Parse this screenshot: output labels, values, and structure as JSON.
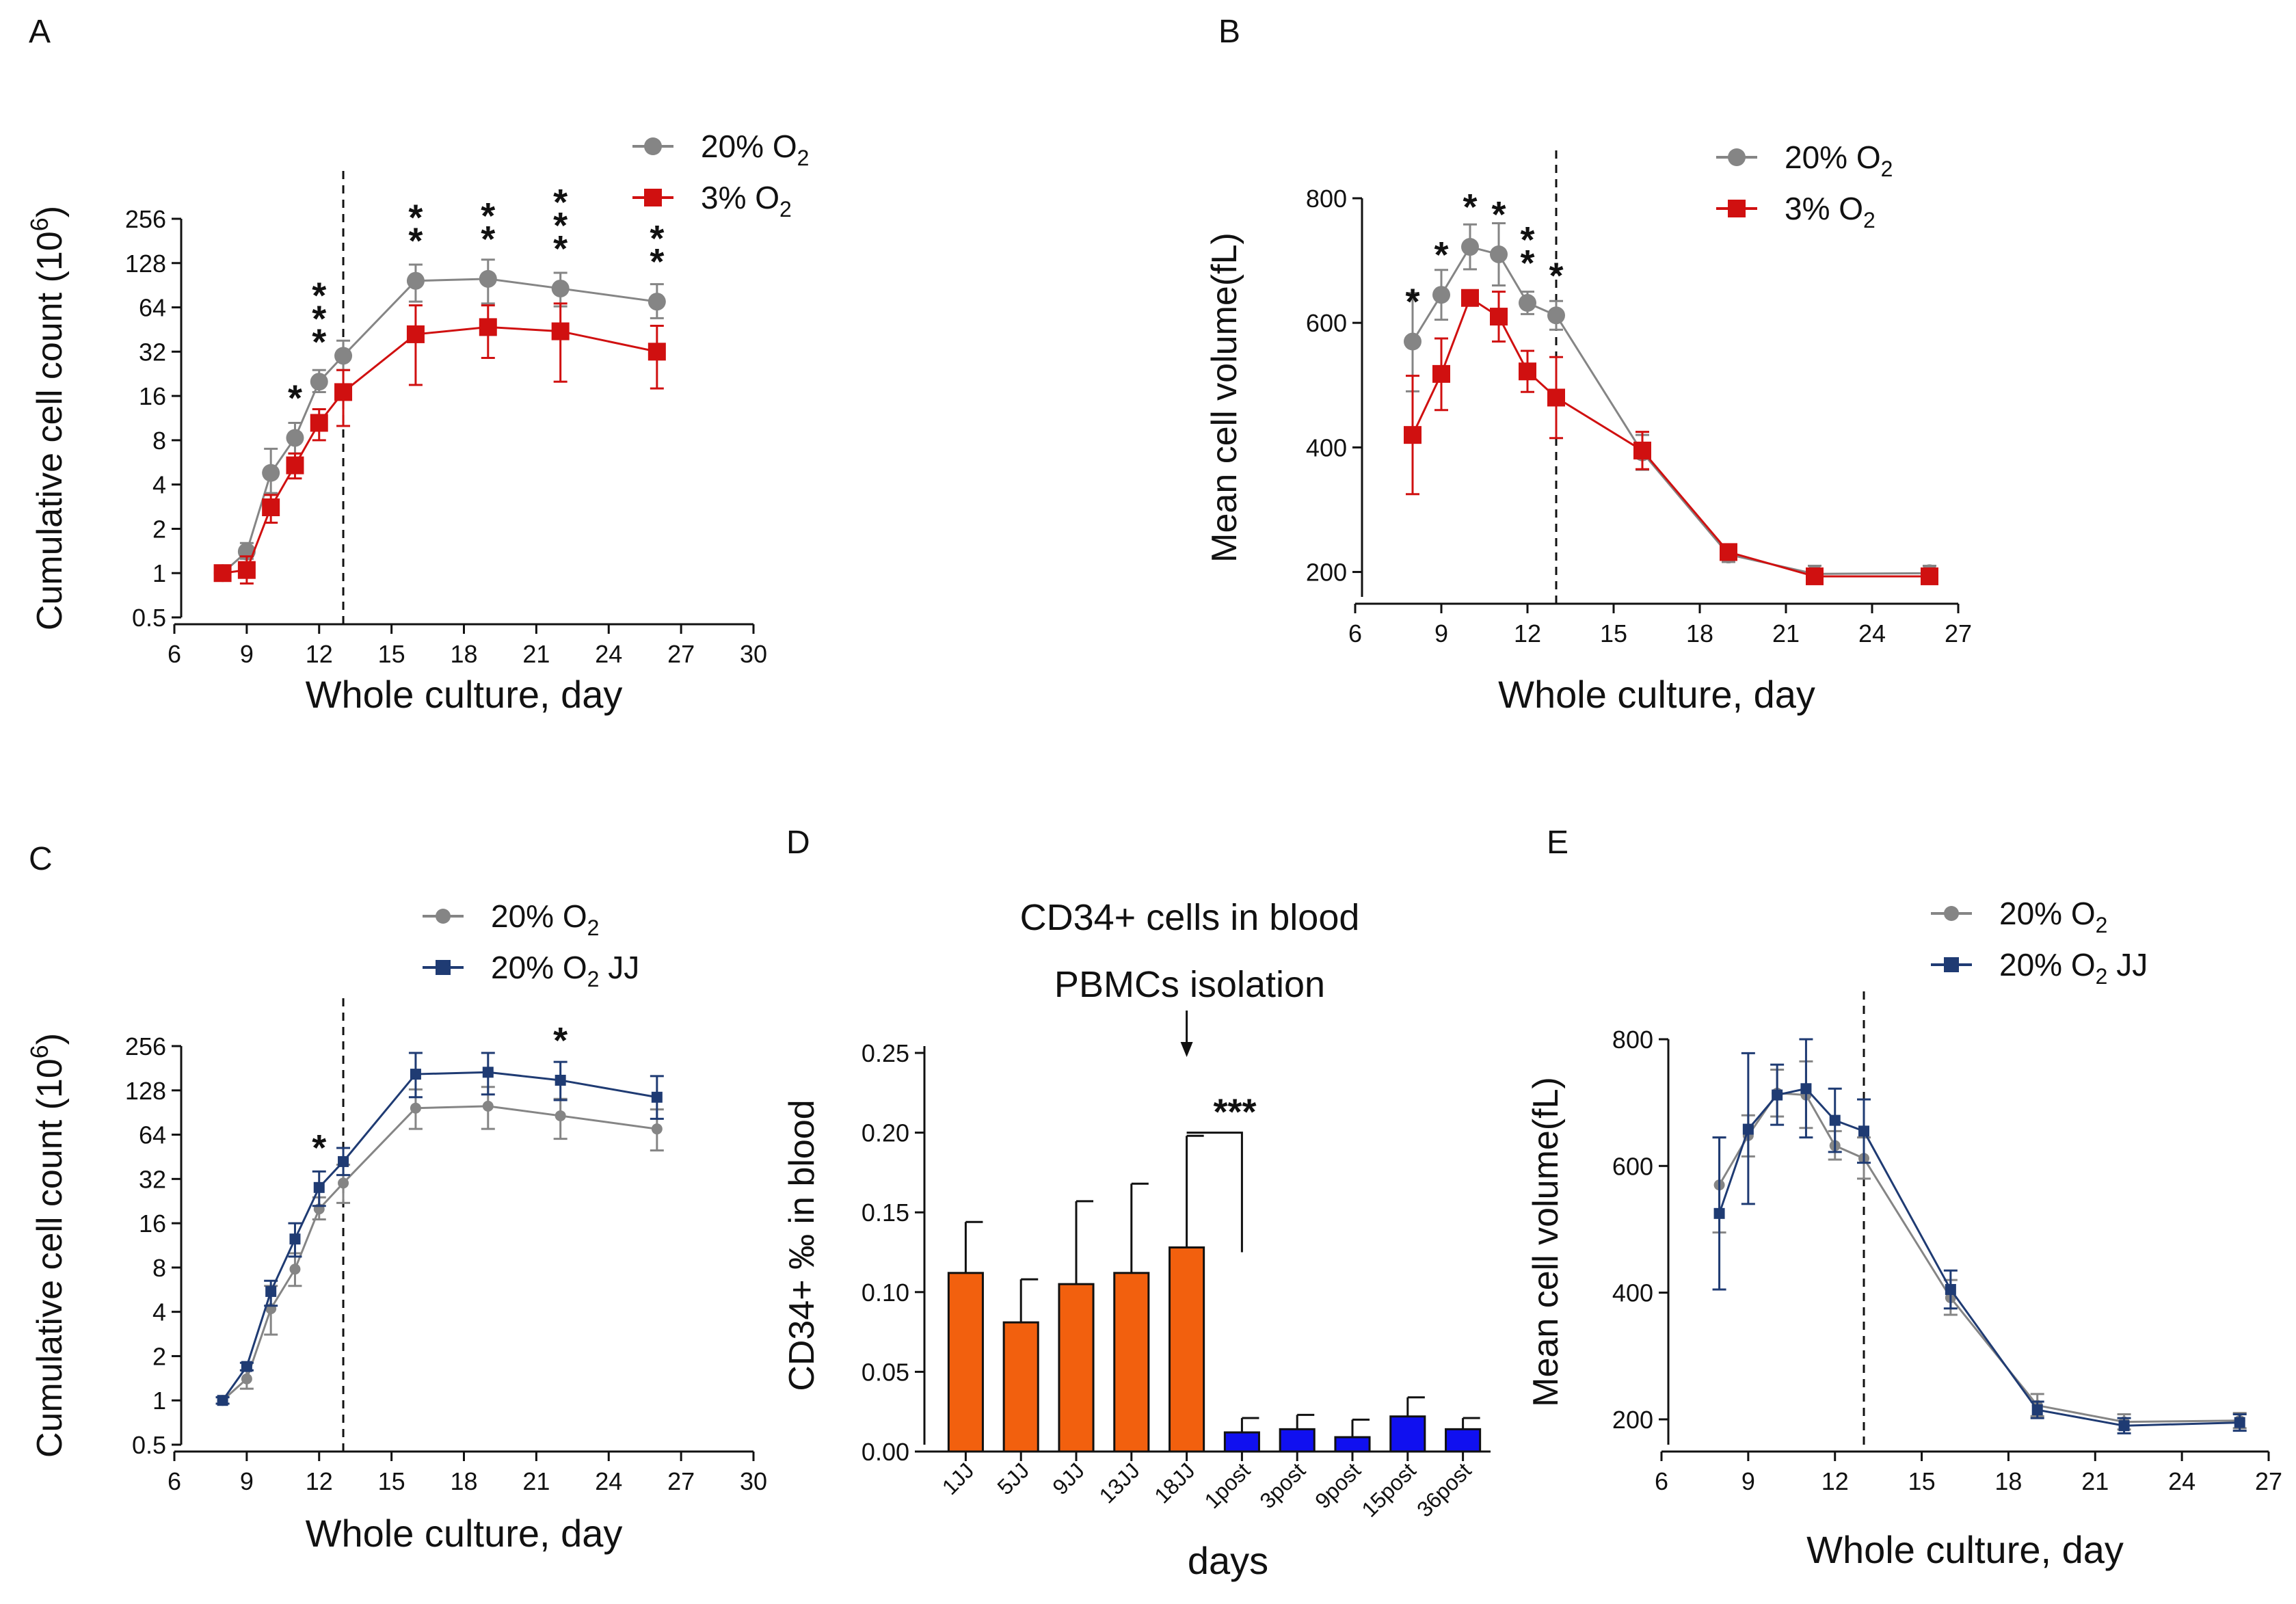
{
  "figure": {
    "panels": [
      "A",
      "B",
      "C",
      "D",
      "E"
    ]
  },
  "colors": {
    "gray": "#858585",
    "red": "#d01010",
    "navy": "#1f3b73",
    "orange": "#f2600e",
    "blue": "#1010f0",
    "black": "#111111"
  },
  "chart_data": [
    {
      "panel": "A",
      "type": "line",
      "yscale": "log2",
      "xlabel": "Whole culture, day",
      "ylabel": "Cumulative cell count (10",
      "ylabel_sup": "6",
      "ylabel_end": ")",
      "xlim": [
        6,
        30
      ],
      "ylim": [
        0.5,
        256
      ],
      "xticks": [
        6,
        9,
        12,
        15,
        18,
        21,
        24,
        27,
        30
      ],
      "yticks": [
        0.5,
        1,
        2,
        4,
        8,
        16,
        32,
        64,
        128,
        256
      ],
      "ytick_labels": [
        "0.5",
        "1",
        "2",
        "4",
        "8",
        "16",
        "32",
        "64",
        "128",
        "256"
      ],
      "vline_x": 13,
      "legend": [
        {
          "name": "20% O",
          "sub": "2",
          "suffix": "",
          "color": "gray",
          "marker": "circle"
        },
        {
          "name": "3% O",
          "sub": "2",
          "suffix": "",
          "color": "red",
          "marker": "square"
        }
      ],
      "series": [
        {
          "name": "20% O2",
          "color": "gray",
          "marker": "circle",
          "x": [
            8,
            9,
            10,
            11,
            12,
            13,
            16,
            19,
            22,
            26
          ],
          "y": [
            1,
            1.4,
            4.8,
            8.3,
            20,
            30,
            97,
            100,
            86,
            70
          ],
          "err_hi": [
            1.05,
            1.6,
            7,
            10.5,
            24,
            38,
            125,
            135,
            110,
            92
          ],
          "err_lo": [
            0.95,
            1.25,
            3.5,
            6.5,
            17,
            24,
            70,
            68,
            65,
            54
          ]
        },
        {
          "name": "3% O2",
          "color": "red",
          "marker": "square",
          "x": [
            8,
            9,
            10,
            11,
            12,
            13,
            16,
            19,
            22,
            26
          ],
          "y": [
            1,
            1.05,
            2.8,
            5.4,
            10.5,
            17,
            42,
            47,
            44,
            32
          ],
          "err_hi": [
            1.05,
            1.3,
            3.4,
            6.5,
            13,
            24,
            66,
            66,
            68,
            48
          ],
          "err_lo": [
            0.95,
            0.85,
            2.2,
            4.4,
            8,
            10,
            19,
            29,
            20,
            18
          ]
        }
      ],
      "annotations": [
        {
          "x": 11,
          "y": 8.3,
          "text": "*"
        },
        {
          "x": 12,
          "y": 20,
          "text": "***"
        },
        {
          "x": 16,
          "y": 97,
          "text": "**"
        },
        {
          "x": 19,
          "y": 100,
          "text": "**"
        },
        {
          "x": 22,
          "y": 86,
          "text": "***"
        },
        {
          "x": 26,
          "y": 70,
          "text": "**"
        }
      ]
    },
    {
      "panel": "B",
      "type": "line",
      "yscale": "linear",
      "xlabel": "Whole culture, day",
      "ylabel": "Mean cell volume(fL)",
      "xlim": [
        6,
        27
      ],
      "ylim": [
        160,
        800
      ],
      "xticks": [
        6,
        9,
        12,
        15,
        18,
        21,
        24,
        27
      ],
      "yticks": [
        200,
        400,
        600,
        800
      ],
      "ytick_labels": [
        "200",
        "400",
        "600",
        "800"
      ],
      "vline_x": 13,
      "legend": [
        {
          "name": "20% O",
          "sub": "2",
          "suffix": "",
          "color": "gray",
          "marker": "circle"
        },
        {
          "name": "3% O",
          "sub": "2",
          "suffix": "",
          "color": "red",
          "marker": "square"
        }
      ],
      "series": [
        {
          "name": "20% O2",
          "color": "gray",
          "marker": "circle",
          "x": [
            8,
            9,
            10,
            11,
            12,
            13,
            16,
            19,
            22,
            26
          ],
          "y": [
            570,
            645,
            722,
            710,
            632,
            612,
            392,
            228,
            197,
            198
          ],
          "err_hi": [
            648,
            685,
            758,
            760,
            650,
            635,
            420,
            240,
            210,
            210
          ],
          "err_lo": [
            490,
            605,
            686,
            660,
            614,
            589,
            364,
            216,
            184,
            186
          ]
        },
        {
          "name": "3% O2",
          "color": "red",
          "marker": "square",
          "x": [
            8,
            9,
            10,
            11,
            12,
            13,
            16,
            19,
            22,
            26
          ],
          "y": [
            420,
            518,
            640,
            610,
            522,
            480,
            395,
            232,
            193,
            193
          ],
          "err_hi": [
            515,
            575,
            652,
            650,
            555,
            545,
            425,
            244,
            200,
            198
          ],
          "err_lo": [
            325,
            460,
            628,
            570,
            489,
            415,
            365,
            220,
            186,
            188
          ]
        }
      ],
      "annotations": [
        {
          "x": 8,
          "y": 570,
          "text": "*"
        },
        {
          "x": 9,
          "y": 645,
          "text": "*"
        },
        {
          "x": 10,
          "y": 722,
          "text": "*"
        },
        {
          "x": 11,
          "y": 710,
          "text": "*"
        },
        {
          "x": 12,
          "y": 632,
          "text": "**"
        },
        {
          "x": 13,
          "y": 612,
          "text": "*"
        }
      ]
    },
    {
      "panel": "C",
      "type": "line",
      "yscale": "log2",
      "xlabel": "Whole culture, day",
      "ylabel": "Cumulative cell count (10",
      "ylabel_sup": "6",
      "ylabel_end": ")",
      "xlim": [
        6,
        30
      ],
      "ylim": [
        0.5,
        256
      ],
      "xticks": [
        6,
        9,
        12,
        15,
        18,
        21,
        24,
        27,
        30
      ],
      "yticks": [
        0.5,
        1,
        2,
        4,
        8,
        16,
        32,
        64,
        128,
        256
      ],
      "ytick_labels": [
        "0.5",
        "1",
        "2",
        "4",
        "8",
        "16",
        "32",
        "64",
        "128",
        "256"
      ],
      "vline_x": 13,
      "legend": [
        {
          "name": "20% O",
          "sub": "2",
          "suffix": "",
          "color": "gray",
          "marker": "circle"
        },
        {
          "name": "20% O",
          "sub": "2",
          "suffix": " JJ",
          "color": "navy",
          "marker": "square"
        }
      ],
      "series": [
        {
          "name": "20% O2",
          "color": "gray",
          "marker": "circle",
          "x": [
            8,
            9,
            10,
            11,
            12,
            13,
            16,
            19,
            22,
            26
          ],
          "y": [
            1,
            1.4,
            4.2,
            7.8,
            20,
            30,
            97,
            100,
            86,
            70
          ],
          "err_hi": [
            1.05,
            1.6,
            6,
            10,
            24,
            40,
            130,
            135,
            112,
            95
          ],
          "err_lo": [
            0.95,
            1.2,
            2.8,
            6,
            17,
            22,
            70,
            70,
            60,
            50
          ]
        },
        {
          "name": "20% O2 JJ",
          "color": "navy",
          "marker": "square",
          "x": [
            8,
            9,
            10,
            11,
            12,
            13,
            16,
            19,
            22,
            26
          ],
          "y": [
            1,
            1.7,
            5.5,
            12.5,
            28,
            42,
            165,
            170,
            150,
            115
          ],
          "err_hi": [
            1.05,
            1.8,
            6.5,
            16,
            36,
            52,
            230,
            230,
            200,
            160
          ],
          "err_lo": [
            0.95,
            1.6,
            4.4,
            9.5,
            21,
            34,
            115,
            120,
            110,
            82
          ]
        }
      ],
      "annotations": [
        {
          "x": 12,
          "y": 28,
          "text": "*"
        },
        {
          "x": 22,
          "y": 150,
          "text": "*"
        }
      ]
    },
    {
      "panel": "D",
      "type": "bar",
      "title": "CD34+ cells in blood",
      "subtitle": "PBMCs isolation",
      "significance": "***",
      "xlabel": "days",
      "ylabel": "CD34+ ‰ in blood",
      "ylim": [
        0,
        0.25
      ],
      "yticks": [
        0,
        0.05,
        0.1,
        0.15,
        0.2,
        0.25
      ],
      "ytick_labels": [
        "0.00",
        "0.05",
        "0.10",
        "0.15",
        "0.20",
        "0.25"
      ],
      "categories": [
        "1JJ",
        "5JJ",
        "9JJ",
        "13JJ",
        "18JJ",
        "1post",
        "3post",
        "9post",
        "15post",
        "36post"
      ],
      "values": [
        0.112,
        0.081,
        0.105,
        0.112,
        0.128,
        0.012,
        0.014,
        0.009,
        0.022,
        0.014
      ],
      "err": [
        0.032,
        0.027,
        0.052,
        0.056,
        0.07,
        0.009,
        0.009,
        0.011,
        0.012,
        0.007
      ],
      "bar_colors": [
        "orange",
        "orange",
        "orange",
        "orange",
        "orange",
        "blue",
        "blue",
        "blue",
        "blue",
        "blue"
      ]
    },
    {
      "panel": "E",
      "type": "line",
      "yscale": "linear",
      "xlabel": "Whole culture, day",
      "ylabel": "Mean cell volume(fL)",
      "xlim": [
        6,
        27
      ],
      "ylim": [
        160,
        800
      ],
      "xticks": [
        6,
        9,
        12,
        15,
        18,
        21,
        24,
        27
      ],
      "yticks": [
        200,
        400,
        600,
        800
      ],
      "ytick_labels": [
        "200",
        "400",
        "600",
        "800"
      ],
      "vline_x": 13,
      "legend": [
        {
          "name": "20% O",
          "sub": "2",
          "suffix": "",
          "color": "gray",
          "marker": "circle"
        },
        {
          "name": "20% O",
          "sub": "2",
          "suffix": " JJ",
          "color": "navy",
          "marker": "square"
        }
      ],
      "series": [
        {
          "name": "20% O2",
          "color": "gray",
          "marker": "circle",
          "x": [
            8,
            9,
            10,
            11,
            12,
            13,
            16,
            19,
            22,
            26
          ],
          "y": [
            570,
            648,
            715,
            712,
            632,
            612,
            392,
            222,
            196,
            198
          ],
          "err_hi": [
            645,
            680,
            752,
            765,
            655,
            645,
            420,
            240,
            208,
            210
          ],
          "err_lo": [
            495,
            615,
            678,
            660,
            610,
            580,
            365,
            205,
            184,
            186
          ]
        },
        {
          "name": "20% O2 JJ",
          "color": "navy",
          "marker": "square",
          "x": [
            8,
            9,
            10,
            11,
            12,
            13,
            16,
            19,
            22,
            26
          ],
          "y": [
            525,
            658,
            712,
            722,
            672,
            655,
            405,
            215,
            190,
            195
          ],
          "err_hi": [
            645,
            778,
            760,
            800,
            722,
            705,
            435,
            228,
            202,
            208
          ],
          "err_lo": [
            405,
            540,
            665,
            645,
            622,
            605,
            375,
            202,
            178,
            182
          ]
        }
      ],
      "annotations": []
    }
  ]
}
